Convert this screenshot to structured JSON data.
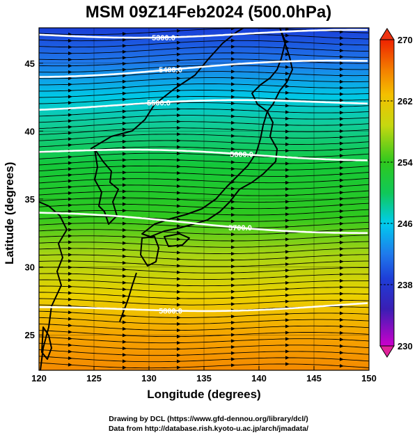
{
  "title": "MSM 09Z14Feb2024 (500.0hPa)",
  "xlabel": "Longitude (degrees)",
  "ylabel": "Latitude  (degrees)",
  "footer": {
    "line1": "Drawing by DCL (https://www.gfd-dennou.org/library/dcl/)",
    "line2": "Data from http://database.rish.kyoto-u.ac.jp/arch/jmadata/"
  },
  "map": {
    "lon_range": [
      120,
      150
    ],
    "lat_range": [
      22.4,
      47.6
    ],
    "x_ticks": [
      120,
      125,
      130,
      135,
      140,
      145,
      150
    ],
    "y_ticks": [
      25,
      30,
      35,
      40,
      45
    ],
    "x_tick_labels": [
      "120",
      "125",
      "130",
      "135",
      "140",
      "145",
      "150"
    ],
    "y_tick_labels": [
      "25",
      "30",
      "35",
      "40",
      "45"
    ],
    "shaded_field": "temperature (K)",
    "colorbar": {
      "min": 230,
      "max": 270,
      "tick_labels": [
        "230",
        "238",
        "246",
        "254",
        "262",
        "270"
      ],
      "colors": [
        "#cc00cc",
        "#2222cc",
        "#2255ee",
        "#00ccee",
        "#11cc33",
        "#88dd11",
        "#eedd00",
        "#ff9900",
        "#ee2200"
      ]
    },
    "height_contours": [
      {
        "label": "5300.0",
        "lat_west": 47.1,
        "lat_east": 47.2
      },
      {
        "label": "5400.0",
        "lat_west": 44.2,
        "lat_east": 45.1
      },
      {
        "label": "5500.0",
        "lat_west": 41.8,
        "lat_east": 42.2
      },
      {
        "label": "5600.0",
        "lat_west": 38.5,
        "lat_east": 38.1
      },
      {
        "label": "5700.0",
        "lat_west": 33.8,
        "lat_east": 32.6
      },
      {
        "label": "5800.0",
        "lat_west": 26.8,
        "lat_east": 27.2
      }
    ],
    "wind": "westerly streamlines"
  }
}
